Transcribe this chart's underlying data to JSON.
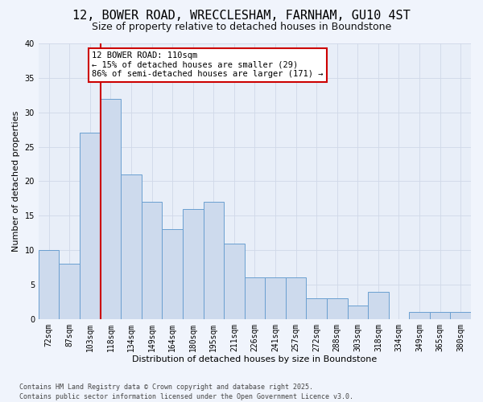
{
  "title": "12, BOWER ROAD, WRECCLESHAM, FARNHAM, GU10 4ST",
  "subtitle": "Size of property relative to detached houses in Boundstone",
  "xlabel": "Distribution of detached houses by size in Boundstone",
  "ylabel": "Number of detached properties",
  "categories": [
    "72sqm",
    "87sqm",
    "103sqm",
    "118sqm",
    "134sqm",
    "149sqm",
    "164sqm",
    "180sqm",
    "195sqm",
    "211sqm",
    "226sqm",
    "241sqm",
    "257sqm",
    "272sqm",
    "288sqm",
    "303sqm",
    "318sqm",
    "334sqm",
    "349sqm",
    "365sqm",
    "380sqm"
  ],
  "values": [
    10,
    8,
    27,
    32,
    21,
    17,
    13,
    16,
    17,
    11,
    6,
    6,
    6,
    3,
    3,
    2,
    4,
    0,
    1,
    1,
    1
  ],
  "bar_color": "#cddaed",
  "bar_edge_color": "#6a9fd0",
  "red_line_x": 2.5,
  "annotation_text": "12 BOWER ROAD: 110sqm\n← 15% of detached houses are smaller (29)\n86% of semi-detached houses are larger (171) →",
  "annotation_box_color": "#ffffff",
  "annotation_box_edge": "#cc0000",
  "red_line_color": "#cc0000",
  "ylim": [
    0,
    40
  ],
  "yticks": [
    0,
    5,
    10,
    15,
    20,
    25,
    30,
    35,
    40
  ],
  "grid_color": "#d0d8e8",
  "bg_color": "#e8eef8",
  "fig_color": "#f0f4fc",
  "footer": "Contains HM Land Registry data © Crown copyright and database right 2025.\nContains public sector information licensed under the Open Government Licence v3.0.",
  "title_fontsize": 11,
  "subtitle_fontsize": 9,
  "tick_fontsize": 7,
  "label_fontsize": 8,
  "annotation_fontsize": 7.5,
  "footer_fontsize": 6
}
